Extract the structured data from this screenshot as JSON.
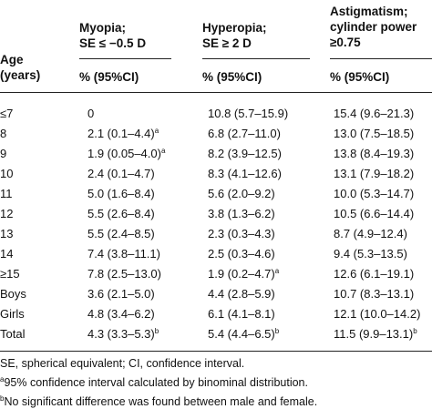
{
  "table": {
    "col_headers": {
      "age_line1": "Age",
      "age_line2": "(years)",
      "myopia_line1": "Myopia;",
      "myopia_line2": "SE ≤ −0.5 D",
      "hyperopia_line1": "Hyperopia;",
      "hyperopia_line2": "SE ≥ 2 D",
      "astig_line1": "Astigmatism;",
      "astig_line2": "cylinder power",
      "astig_line3": "≥0.75"
    },
    "sub_headers": [
      "% (95%CI)",
      "% (95%CI)",
      "% (95%CI)"
    ],
    "rows": [
      {
        "age": "≤7",
        "myopia": "0",
        "m_sup": "",
        "hyperopia": "10.8 (5.7–15.9)",
        "h_sup": "",
        "astig": "15.4 (9.6–21.3)"
      },
      {
        "age": "8",
        "myopia": "2.1 (0.1–4.4)",
        "m_sup": "a",
        "hyperopia": "6.8 (2.7–11.0)",
        "h_sup": "",
        "astig": "13.0 (7.5–18.5)"
      },
      {
        "age": "9",
        "myopia": "1.9 (0.05–4.0)",
        "m_sup": "a",
        "hyperopia": "8.2 (3.9–12.5)",
        "h_sup": "",
        "astig": "13.8 (8.4–19.3)"
      },
      {
        "age": "10",
        "myopia": "2.4 (0.1–4.7)",
        "m_sup": "",
        "hyperopia": "8.3 (4.1–12.6)",
        "h_sup": "",
        "astig": "13.1 (7.9–18.2)"
      },
      {
        "age": "11",
        "myopia": "5.0 (1.6–8.4)",
        "m_sup": "",
        "hyperopia": "5.6 (2.0–9.2)",
        "h_sup": "",
        "astig": "10.0 (5.3–14.7)"
      },
      {
        "age": "12",
        "myopia": "5.5 (2.6–8.4)",
        "m_sup": "",
        "hyperopia": "3.8 (1.3–6.2)",
        "h_sup": "",
        "astig": "10.5 (6.6–14.4)"
      },
      {
        "age": "13",
        "myopia": "5.5 (2.4–8.5)",
        "m_sup": "",
        "hyperopia": "2.3 (0.3–4.3)",
        "h_sup": "",
        "astig": "8.7 (4.9–12.4)"
      },
      {
        "age": "14",
        "myopia": "7.4 (3.8–11.1)",
        "m_sup": "",
        "hyperopia": "2.5 (0.3–4.6)",
        "h_sup": "",
        "astig": "9.4 (5.3–13.5)"
      },
      {
        "age": "≥15",
        "myopia": "7.8 (2.5–13.0)",
        "m_sup": "",
        "hyperopia": "1.9 (0.2–4.7)",
        "h_sup": "a",
        "astig": "12.6 (6.1–19.1)"
      },
      {
        "age": "Boys",
        "myopia": "3.6 (2.1–5.0)",
        "m_sup": "",
        "hyperopia": "4.4 (2.8–5.9)",
        "h_sup": "",
        "astig": "10.7 (8.3–13.1)"
      },
      {
        "age": "Girls",
        "myopia": "4.8 (3.4–6.2)",
        "m_sup": "",
        "hyperopia": "6.1 (4.1–8.1)",
        "h_sup": "",
        "astig": "12.1 (10.0–14.2)"
      },
      {
        "age": "Total",
        "myopia": "4.3 (3.3–5.3)",
        "m_sup": "b",
        "hyperopia": "5.4 (4.4–6.5)",
        "h_sup": "b",
        "astig": "11.5 (9.9–13.1)",
        "a_sup": "b"
      }
    ]
  },
  "footnotes": {
    "abbrev": "SE, spherical equivalent; CI, confidence interval.",
    "a_mark": "a",
    "a_text": "95% confidence interval calculated by binominal distribution.",
    "b_mark": "b",
    "b_text": "No significant difference was found between male and female."
  }
}
